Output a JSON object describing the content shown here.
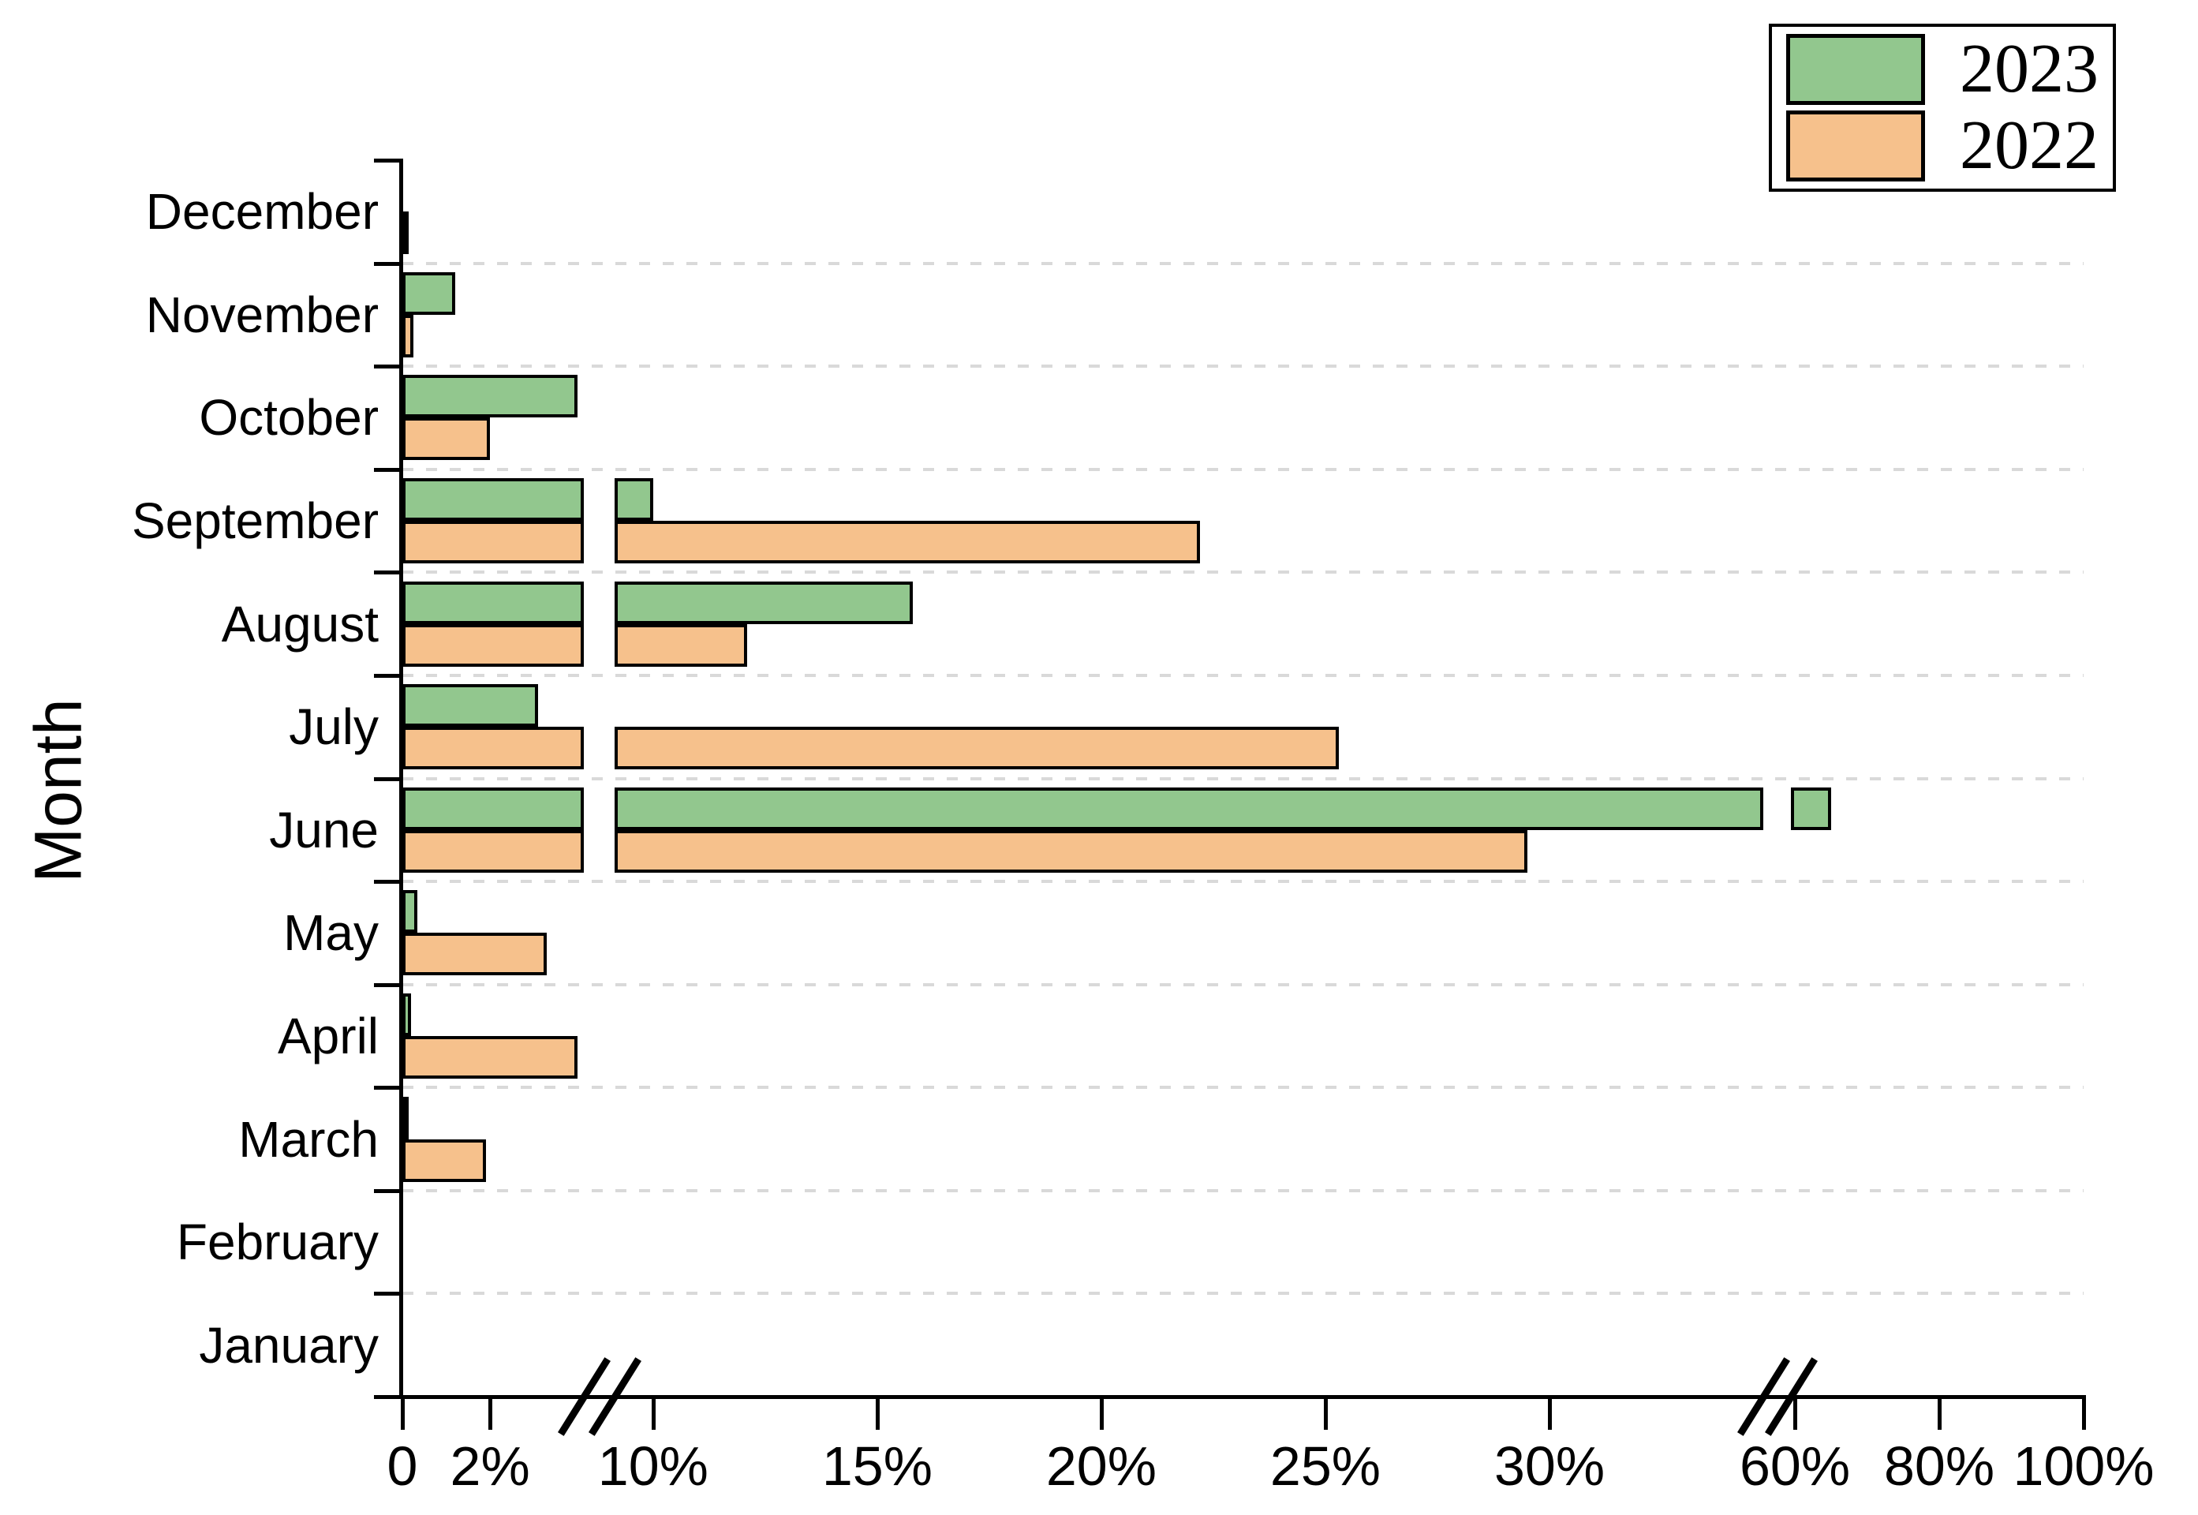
{
  "chart_data": {
    "type": "bar",
    "orientation": "horizontal",
    "title": "",
    "xlabel": "",
    "ylabel": "Month",
    "categories_top_to_bottom": [
      "December",
      "November",
      "October",
      "September",
      "August",
      "July",
      "June",
      "May",
      "April",
      "March",
      "February",
      "January"
    ],
    "series": [
      {
        "name": "2023",
        "color": "#92c78e",
        "values_top_to_bottom": [
          0,
          1.2,
          4.0,
          10.0,
          15.8,
          3.1,
          65.0,
          0.35,
          0.2,
          0.15,
          0,
          0
        ]
      },
      {
        "name": "2022",
        "color": "#f6c18c",
        "values_top_to_bottom": [
          0.1,
          0.25,
          2.0,
          22.2,
          12.1,
          25.3,
          29.5,
          3.3,
          4.0,
          1.9,
          0,
          0
        ]
      }
    ],
    "x_axis": {
      "unit": "percent",
      "range": [
        0,
        100
      ],
      "ticks": [
        {
          "value": 0,
          "label": "0"
        },
        {
          "value": 2,
          "label": "2%"
        },
        {
          "value": 10,
          "label": "10%"
        },
        {
          "value": 15,
          "label": "15%"
        },
        {
          "value": 20,
          "label": "20%"
        },
        {
          "value": 25,
          "label": "25%"
        },
        {
          "value": 30,
          "label": "30%"
        },
        {
          "value": 60,
          "label": "60%"
        },
        {
          "value": 80,
          "label": "80%"
        },
        {
          "value": 100,
          "label": "100%"
        }
      ],
      "breaks": [
        {
          "skip_from": 4.1,
          "skip_to": 9.1,
          "between_ticks": [
            "2%",
            "10%"
          ]
        },
        {
          "skip_from": 34.8,
          "skip_to": 59.5,
          "between_ticks": [
            "30%",
            "60%"
          ]
        }
      ]
    },
    "grid": {
      "horizontal_dashed": true,
      "color": "#d9d9d9"
    },
    "legend": {
      "position": "top-right",
      "entries": [
        "2023",
        "2022"
      ]
    },
    "bar_outline_color": "#000000"
  }
}
